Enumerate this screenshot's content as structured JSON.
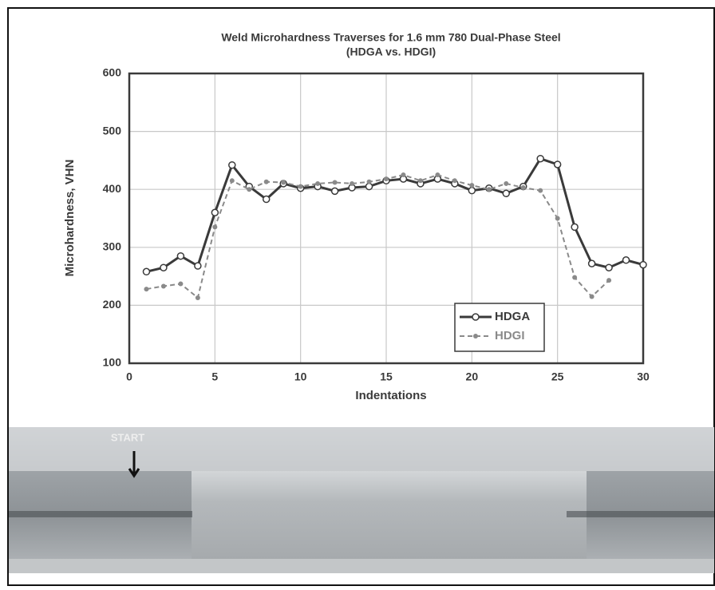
{
  "chart_data": {
    "type": "line",
    "title": "Weld Microhardness Traverses for 1.6 mm 780 Dual-Phase Steel",
    "subtitle": "(HDGA vs. HDGI)",
    "x_label": "Indentations",
    "y_label": "Microhardness, VHN",
    "x": [
      1,
      2,
      3,
      4,
      5,
      6,
      7,
      8,
      9,
      10,
      11,
      12,
      13,
      14,
      15,
      16,
      17,
      18,
      19,
      20,
      21,
      22,
      23,
      24,
      25,
      26,
      27,
      28,
      29,
      30
    ],
    "series": [
      {
        "name": "HDGA",
        "color": "#3a3a3a",
        "dash": false,
        "marker": "open-circle",
        "values": [
          258,
          265,
          285,
          268,
          360,
          442,
          405,
          383,
          410,
          402,
          405,
          397,
          403,
          405,
          415,
          418,
          410,
          418,
          410,
          398,
          402,
          393,
          405,
          453,
          443,
          335,
          272,
          265,
          278,
          270
        ]
      },
      {
        "name": "HDGI",
        "color": "#8a8a8a",
        "dash": true,
        "marker": "dot",
        "values": [
          228,
          233,
          237,
          213,
          335,
          415,
          400,
          413,
          412,
          405,
          410,
          412,
          410,
          413,
          418,
          425,
          415,
          425,
          415,
          407,
          400,
          410,
          403,
          398,
          350,
          248,
          215,
          243,
          null,
          null
        ]
      }
    ],
    "xlim": [
      0,
      30
    ],
    "xticks": [
      0,
      5,
      10,
      15,
      20,
      25,
      30
    ],
    "ylim": [
      100,
      600
    ],
    "yticks": [
      100,
      200,
      300,
      400,
      500,
      600
    ],
    "grid": true,
    "legend": "lower right"
  },
  "micrograph": {
    "label": "START"
  }
}
